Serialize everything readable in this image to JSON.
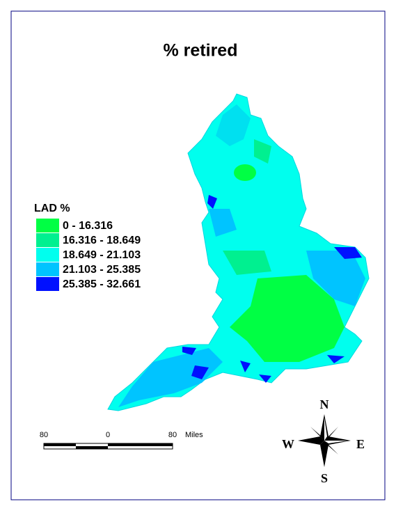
{
  "title": "% retired",
  "legend": {
    "title": "LAD %",
    "classes": [
      {
        "label": "0 - 16.316",
        "color": "#00ff44"
      },
      {
        "label": "16.316 - 18.649",
        "color": "#00f090"
      },
      {
        "label": "18.649 - 21.103",
        "color": "#00ffee"
      },
      {
        "label": "21.103 - 25.385",
        "color": "#00c4ff"
      },
      {
        "label": "25.385 - 32.661",
        "color": "#0010ff"
      }
    ]
  },
  "scale_bar": {
    "labels": [
      "80",
      "0",
      "80"
    ],
    "unit": "Miles"
  },
  "compass": {
    "north": "N",
    "south": "S",
    "west": "W",
    "east": "E"
  }
}
